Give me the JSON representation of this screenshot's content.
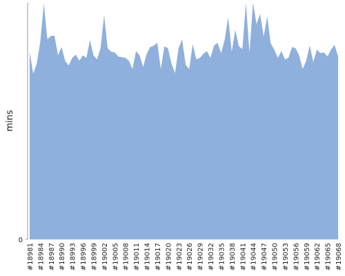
{
  "chart_data": {
    "type": "area",
    "y_label": "mins",
    "color": "#8fb0dc",
    "categories": [
      "#18981",
      null,
      null,
      "#18984",
      null,
      null,
      "#18987",
      null,
      null,
      "#18990",
      null,
      null,
      "#18993",
      null,
      null,
      "#18996",
      null,
      null,
      "#18999",
      null,
      null,
      "#19002",
      null,
      null,
      "#19005",
      null,
      null,
      "#19008",
      null,
      null,
      "#19011",
      null,
      null,
      "#19014",
      null,
      null,
      "#19017",
      null,
      null,
      "#19020",
      null,
      null,
      "#19023",
      null,
      null,
      "#19026",
      null,
      null,
      "#19029",
      null,
      null,
      "#19032",
      null,
      null,
      "#19035",
      null,
      null,
      "#19038",
      null,
      null,
      "#19041",
      null,
      null,
      "#19044",
      null,
      null,
      "#19047",
      null,
      null,
      "#19050",
      null,
      null,
      "#19053",
      null,
      null,
      "#19056",
      null,
      null,
      "#19059",
      null,
      null,
      "#19062",
      null,
      null,
      "#19065",
      null,
      null,
      "#19068"
    ],
    "values": [
      79.3,
      70.0,
      74.3,
      83.7,
      99.7,
      84.5,
      86.0,
      86.0,
      77.8,
      81.3,
      75.5,
      73.5,
      76.7,
      78.1,
      75.5,
      77.8,
      76.7,
      84.3,
      77.8,
      76.1,
      80.8,
      94.8,
      80.8,
      79.3,
      79.0,
      77.3,
      77.0,
      76.7,
      75.5,
      72.0,
      79.6,
      77.8,
      72.9,
      78.4,
      81.3,
      81.9,
      83.1,
      72.0,
      81.6,
      80.8,
      74.3,
      70.3,
      80.8,
      84.5,
      73.8,
      72.0,
      82.5,
      76.1,
      76.7,
      78.4,
      79.6,
      76.7,
      81.9,
      83.1,
      78.7,
      84.3,
      93.9,
      79.3,
      88.6,
      81.6,
      80.5,
      100,
      78.7,
      100,
      91.0,
      95.3,
      85.7,
      94.2,
      82.8,
      80.2,
      76.7,
      79.6,
      76.1,
      76.7,
      81.3,
      80.8,
      77.8,
      72.0,
      75.5,
      81.9,
      74.9,
      80.2,
      78.7,
      79.0,
      77.3,
      80.2,
      82.2,
      77.3
    ],
    "ylim": [
      0,
      100
    ],
    "yticks": [
      0
    ]
  }
}
